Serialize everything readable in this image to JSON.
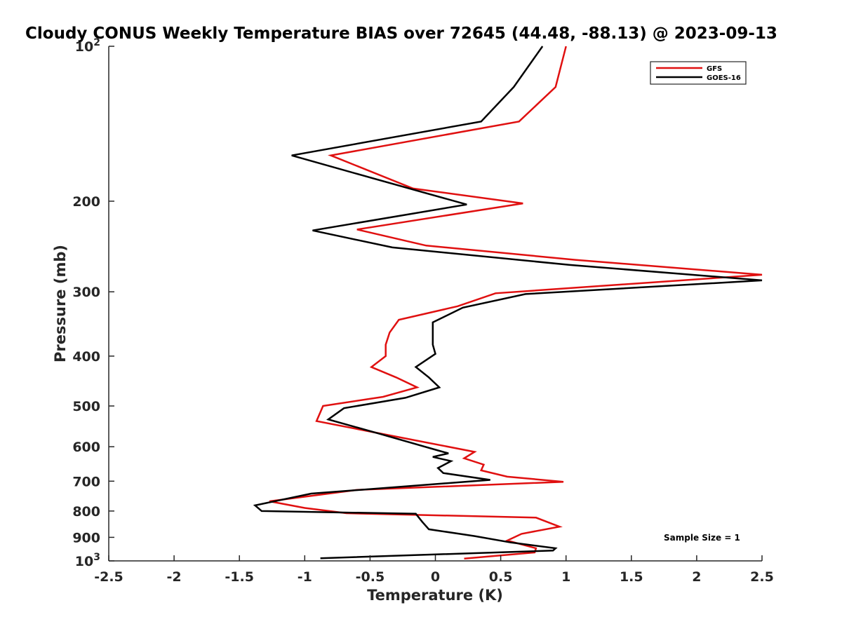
{
  "chart_data": {
    "type": "line",
    "title": "Cloudy CONUS Weekly Temperature BIAS over 72645 (44.48, -88.13) @ 2023-09-13",
    "xlabel": "Temperature (K)",
    "ylabel": "Pressure (mb)",
    "xlim": [
      -2.5,
      2.5
    ],
    "ylim": [
      1000,
      100
    ],
    "y_scale": "log",
    "y_reversed": true,
    "grid": false,
    "legend_position": "top-right",
    "x_ticks": [
      {
        "value": -2.5,
        "label": "-2.5"
      },
      {
        "value": -2,
        "label": "-2"
      },
      {
        "value": -1.5,
        "label": "-1.5"
      },
      {
        "value": -1,
        "label": "-1"
      },
      {
        "value": -0.5,
        "label": "-0.5"
      },
      {
        "value": 0,
        "label": "0"
      },
      {
        "value": 0.5,
        "label": "0.5"
      },
      {
        "value": 1,
        "label": "1"
      },
      {
        "value": 1.5,
        "label": "1.5"
      },
      {
        "value": 2,
        "label": "2"
      },
      {
        "value": 2.5,
        "label": "2.5"
      }
    ],
    "y_ticks": [
      {
        "value": 100,
        "base": "10",
        "exp": "2"
      },
      {
        "value": 200,
        "label": "200"
      },
      {
        "value": 300,
        "label": "300"
      },
      {
        "value": 400,
        "label": "400"
      },
      {
        "value": 500,
        "label": "500"
      },
      {
        "value": 600,
        "label": "600"
      },
      {
        "value": 700,
        "label": "700"
      },
      {
        "value": 800,
        "label": "800"
      },
      {
        "value": 900,
        "label": "900"
      },
      {
        "value": 1000,
        "base": "10",
        "exp": "3"
      }
    ],
    "series": [
      {
        "name": "GFS",
        "color": "#e01010",
        "points": [
          [
            1.0,
            100
          ],
          [
            0.92,
            120
          ],
          [
            0.64,
            140
          ],
          [
            -0.8,
            163
          ],
          [
            -0.17,
            189
          ],
          [
            0.67,
            202
          ],
          [
            -0.6,
            227
          ],
          [
            -0.07,
            244
          ],
          [
            1.07,
            260
          ],
          [
            2.5,
            278
          ],
          [
            0.46,
            302
          ],
          [
            0.17,
            320
          ],
          [
            -0.28,
            340
          ],
          [
            -0.35,
            360
          ],
          [
            -0.38,
            380
          ],
          [
            -0.38,
            400
          ],
          [
            -0.49,
            420
          ],
          [
            -0.3,
            440
          ],
          [
            -0.14,
            460
          ],
          [
            -0.4,
            480
          ],
          [
            -0.86,
            500
          ],
          [
            -0.91,
            535
          ],
          [
            -0.4,
            567
          ],
          [
            0.3,
            614
          ],
          [
            0.22,
            632
          ],
          [
            0.37,
            650
          ],
          [
            0.35,
            667
          ],
          [
            0.55,
            686
          ],
          [
            0.98,
            702
          ],
          [
            -0.6,
            728
          ],
          [
            -1.27,
            766
          ],
          [
            -1.0,
            789
          ],
          [
            -0.68,
            808
          ],
          [
            0.77,
            824
          ],
          [
            0.95,
            858
          ],
          [
            0.66,
            886
          ],
          [
            0.55,
            913
          ],
          [
            0.77,
            945
          ],
          [
            0.76,
            963
          ],
          [
            0.22,
            990
          ]
        ]
      },
      {
        "name": "GOES-16",
        "color": "#000000",
        "points": [
          [
            0.82,
            100
          ],
          [
            0.6,
            120
          ],
          [
            0.35,
            140
          ],
          [
            -1.1,
            163
          ],
          [
            -0.53,
            179
          ],
          [
            0.24,
            203
          ],
          [
            -0.94,
            228
          ],
          [
            -0.33,
            246
          ],
          [
            1.03,
            266
          ],
          [
            2.5,
            285
          ],
          [
            0.69,
            303
          ],
          [
            0.21,
            322
          ],
          [
            -0.02,
            344
          ],
          [
            -0.02,
            380
          ],
          [
            0.0,
            396
          ],
          [
            -0.15,
            420
          ],
          [
            -0.05,
            440
          ],
          [
            0.03,
            460
          ],
          [
            -0.23,
            482
          ],
          [
            -0.7,
            505
          ],
          [
            -0.82,
            531
          ],
          [
            -0.42,
            567
          ],
          [
            0.03,
            611
          ],
          [
            0.1,
            618
          ],
          [
            -0.02,
            628
          ],
          [
            0.12,
            640
          ],
          [
            0.02,
            660
          ],
          [
            0.06,
            675
          ],
          [
            0.42,
            696
          ],
          [
            -0.95,
            740
          ],
          [
            -1.38,
            780
          ],
          [
            -1.33,
            800
          ],
          [
            -0.15,
            810
          ],
          [
            -0.1,
            840
          ],
          [
            -0.05,
            868
          ],
          [
            0.3,
            895
          ],
          [
            0.58,
            921
          ],
          [
            0.92,
            945
          ],
          [
            0.9,
            955
          ],
          [
            -0.88,
            988
          ]
        ]
      }
    ],
    "annotation": "Sample Size = 1"
  }
}
